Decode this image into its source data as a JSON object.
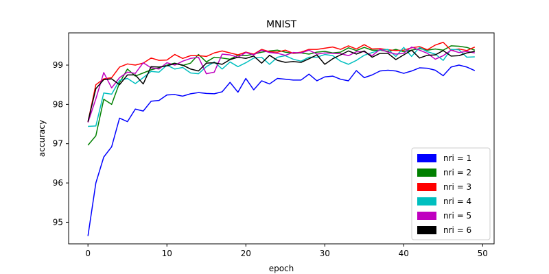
{
  "chart_data": {
    "type": "line",
    "title": "MNIST",
    "xlabel": "epoch",
    "ylabel": "accuracy",
    "xlim": [
      -2.45,
      51.45
    ],
    "ylim": [
      94.45,
      99.82
    ],
    "xticks": [
      0,
      10,
      20,
      30,
      40,
      50
    ],
    "yticks": [
      95,
      96,
      97,
      98,
      99
    ],
    "grid": false,
    "legend_position": "lower right",
    "x": [
      0,
      1,
      2,
      3,
      4,
      5,
      6,
      7,
      8,
      9,
      10,
      11,
      12,
      13,
      14,
      15,
      16,
      17,
      18,
      19,
      20,
      21,
      22,
      23,
      24,
      25,
      26,
      27,
      28,
      29,
      30,
      31,
      32,
      33,
      34,
      35,
      36,
      37,
      38,
      39,
      40,
      41,
      42,
      43,
      44,
      45,
      46,
      47,
      48,
      49
    ],
    "series": [
      {
        "name": "nri = 1",
        "color": "#0000ff",
        "values": [
          94.65,
          96.0,
          96.66,
          96.92,
          97.65,
          97.56,
          97.88,
          97.83,
          98.08,
          98.1,
          98.24,
          98.25,
          98.21,
          98.27,
          98.3,
          98.28,
          98.27,
          98.32,
          98.56,
          98.31,
          98.66,
          98.37,
          98.6,
          98.52,
          98.66,
          98.64,
          98.62,
          98.62,
          98.77,
          98.6,
          98.7,
          98.72,
          98.64,
          98.6,
          98.86,
          98.68,
          98.75,
          98.85,
          98.87,
          98.85,
          98.79,
          98.85,
          98.93,
          98.92,
          98.87,
          98.73,
          98.95,
          99.0,
          98.95,
          98.86
        ]
      },
      {
        "name": "nri = 2",
        "color": "#008000",
        "values": [
          96.96,
          97.2,
          98.13,
          98.0,
          98.55,
          98.9,
          98.72,
          98.8,
          98.88,
          98.93,
          99.0,
          99.05,
          98.99,
          99.05,
          99.27,
          99.08,
          99.2,
          99.18,
          99.15,
          99.25,
          99.24,
          99.28,
          99.33,
          99.36,
          99.38,
          99.33,
          99.3,
          99.31,
          99.28,
          99.33,
          99.35,
          99.31,
          99.33,
          99.44,
          99.37,
          99.45,
          99.38,
          99.38,
          99.35,
          99.4,
          99.34,
          99.38,
          99.42,
          99.38,
          99.41,
          99.38,
          99.49,
          99.48,
          99.45,
          99.38
        ]
      },
      {
        "name": "nri = 3",
        "color": "#ff0000",
        "values": [
          97.55,
          98.5,
          98.65,
          98.68,
          98.95,
          99.03,
          99.0,
          99.05,
          99.18,
          99.12,
          99.13,
          99.27,
          99.17,
          99.24,
          99.24,
          99.22,
          99.31,
          99.36,
          99.31,
          99.26,
          99.33,
          99.28,
          99.4,
          99.34,
          99.33,
          99.38,
          99.3,
          99.33,
          99.4,
          99.4,
          99.43,
          99.46,
          99.4,
          99.49,
          99.41,
          99.52,
          99.41,
          99.42,
          99.39,
          99.37,
          99.38,
          99.44,
          99.47,
          99.39,
          99.51,
          99.58,
          99.38,
          99.41,
          99.37,
          99.46
        ]
      },
      {
        "name": "nri = 4",
        "color": "#00bfbf",
        "values": [
          97.44,
          97.45,
          98.29,
          98.26,
          98.61,
          98.66,
          98.53,
          98.68,
          98.84,
          98.82,
          99.0,
          98.9,
          98.94,
          98.8,
          98.78,
          98.96,
          99.08,
          98.9,
          99.08,
          98.96,
          99.06,
          99.18,
          99.2,
          99.02,
          99.2,
          99.24,
          99.15,
          99.1,
          99.2,
          99.2,
          99.27,
          99.24,
          99.1,
          99.02,
          99.12,
          99.25,
          99.32,
          99.38,
          99.4,
          99.22,
          99.45,
          99.22,
          99.45,
          99.34,
          99.28,
          99.12,
          99.4,
          99.39,
          99.2,
          99.21
        ]
      },
      {
        "name": "nri = 5",
        "color": "#bf00bf",
        "values": [
          97.54,
          98.14,
          98.81,
          98.42,
          98.68,
          98.82,
          98.79,
          99.06,
          98.93,
          98.9,
          99.06,
          99.0,
          99.1,
          99.17,
          99.2,
          98.78,
          98.82,
          99.28,
          99.26,
          99.2,
          99.32,
          99.26,
          99.38,
          99.32,
          99.3,
          99.25,
          99.32,
          99.31,
          99.38,
          99.28,
          99.31,
          99.3,
          99.29,
          99.24,
          99.34,
          99.34,
          99.24,
          99.4,
          99.33,
          99.28,
          99.3,
          99.46,
          99.38,
          99.3,
          99.15,
          99.24,
          99.38,
          99.32,
          99.35,
          99.31
        ]
      },
      {
        "name": "nri = 6",
        "color": "#000000",
        "values": [
          97.56,
          98.4,
          98.63,
          98.65,
          98.5,
          98.75,
          98.75,
          98.52,
          98.96,
          98.95,
          98.98,
          99.04,
          99.0,
          98.9,
          98.85,
          99.05,
          99.06,
          99.02,
          99.14,
          99.2,
          99.17,
          99.23,
          99.05,
          99.25,
          99.12,
          99.07,
          99.09,
          99.07,
          99.16,
          99.26,
          99.02,
          99.16,
          99.26,
          99.36,
          99.28,
          99.36,
          99.2,
          99.3,
          99.3,
          99.14,
          99.26,
          99.38,
          99.18,
          99.25,
          99.26,
          99.37,
          99.23,
          99.24,
          99.31,
          99.35
        ]
      }
    ]
  }
}
